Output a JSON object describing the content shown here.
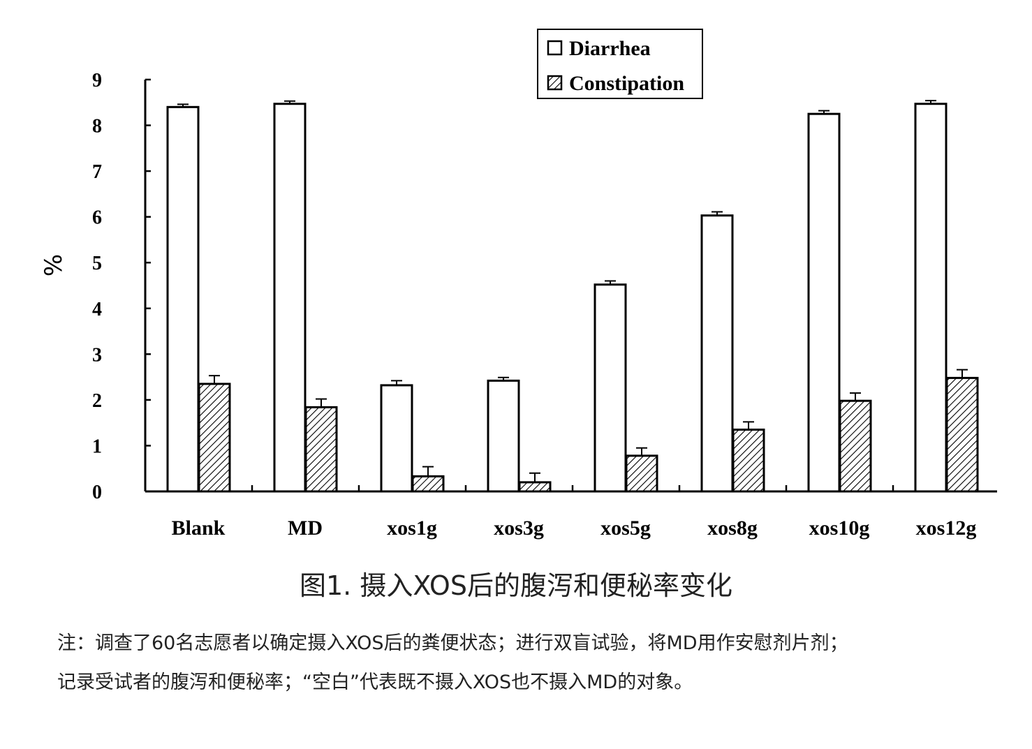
{
  "chart_data": {
    "type": "bar",
    "ylabel": "%",
    "ylim": [
      0,
      9
    ],
    "yticks": [
      "0",
      "1",
      "2",
      "3",
      "4",
      "5",
      "6",
      "7",
      "8",
      "9"
    ],
    "categories": [
      "Blank",
      "MD",
      "xos1g",
      "xos3g",
      "xos5g",
      "xos8g",
      "xos10g",
      "xos12g"
    ],
    "series": [
      {
        "name": "Diarrhea",
        "pattern": "open",
        "values": [
          8.4,
          8.47,
          2.32,
          2.42,
          4.52,
          6.03,
          8.25,
          8.47
        ],
        "errors": [
          0.06,
          0.06,
          0.1,
          0.07,
          0.08,
          0.08,
          0.07,
          0.07
        ]
      },
      {
        "name": "Constipation",
        "pattern": "hatched",
        "values": [
          2.35,
          1.84,
          0.33,
          0.2,
          0.78,
          1.35,
          1.98,
          2.48
        ],
        "errors": [
          0.18,
          0.18,
          0.21,
          0.2,
          0.17,
          0.17,
          0.17,
          0.18
        ]
      }
    ],
    "legend_position": "top-right",
    "grid": false
  },
  "caption": "图1. 摄入XOS后的腹泻和便秘率变化",
  "note_line1": "注：调查了60名志愿者以确定摄入XOS后的粪便状态；进行双盲试验，将MD用作安慰剂片剂；",
  "note_line2": "记录受试者的腹泻和便秘率；“空白”代表既不摄入XOS也不摄入MD的对象。",
  "colors": {
    "bar_fill": "#ffffff",
    "stroke": "#000000",
    "text": "#222222"
  }
}
